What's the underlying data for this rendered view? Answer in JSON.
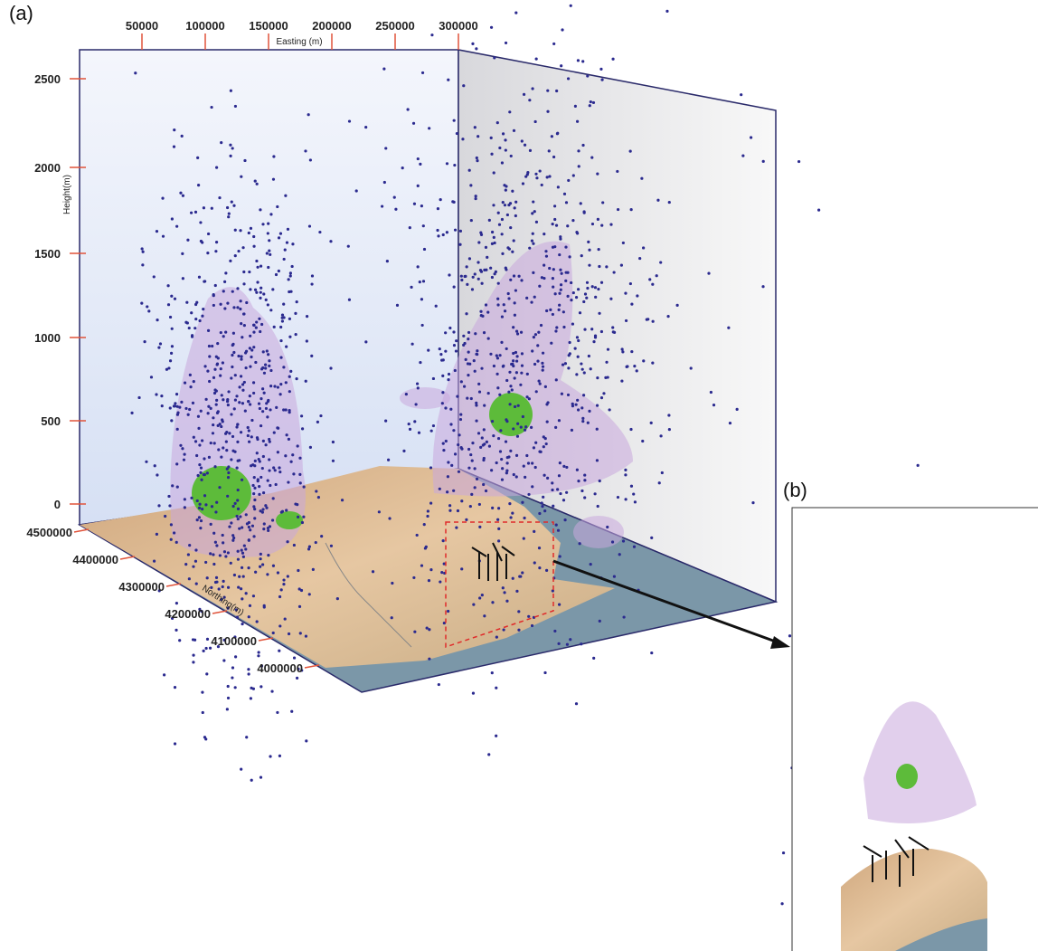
{
  "panels": {
    "a": "(a)",
    "b": "(b)"
  },
  "axes": {
    "easting": {
      "title": "Easting (m)",
      "ticks": [
        "50000",
        "100000",
        "150000",
        "200000",
        "250000",
        "300000"
      ]
    },
    "height": {
      "title": "Height(m)",
      "ticks": [
        "2500",
        "2000",
        "1500",
        "1000",
        "500",
        "0"
      ]
    },
    "northing": {
      "title": "Northing(m)",
      "ticks": [
        "4500000",
        "4400000",
        "4300000",
        "4200000",
        "4100000",
        "4000000"
      ]
    }
  }
}
